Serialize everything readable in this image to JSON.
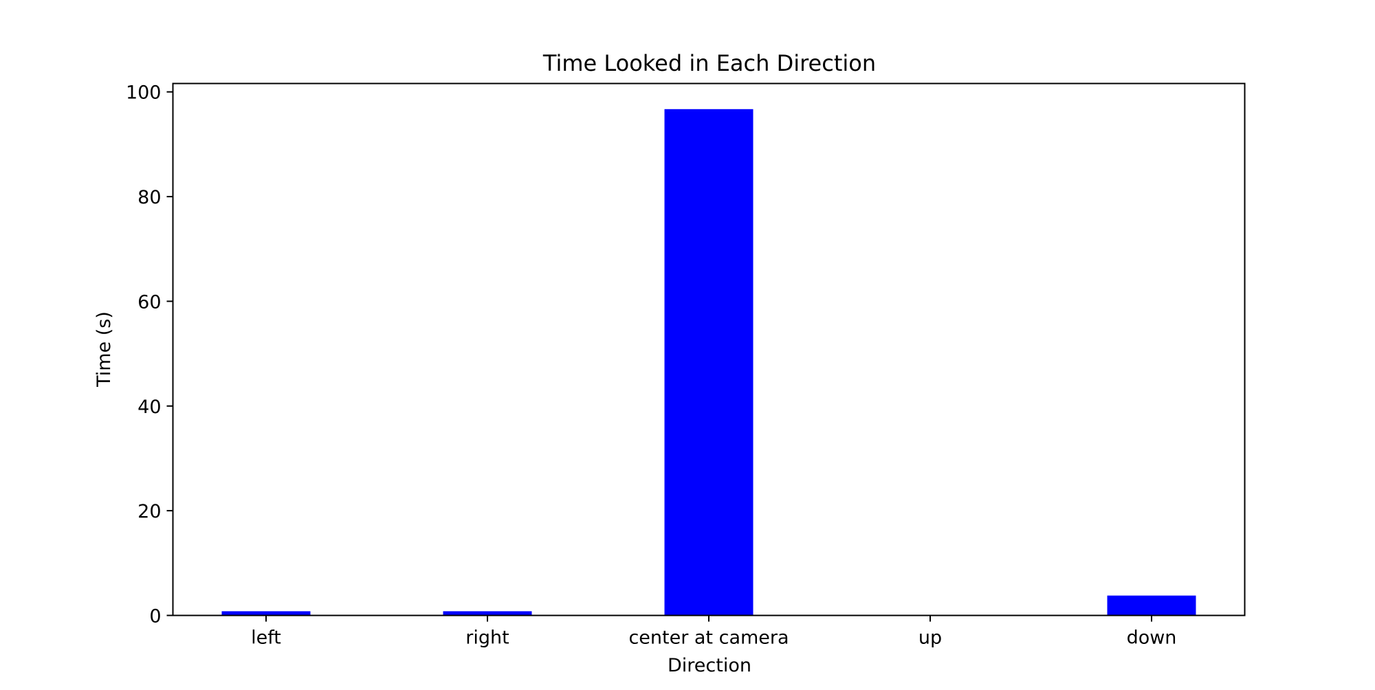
{
  "chart_data": {
    "type": "bar",
    "title": "Time Looked in Each Direction",
    "xlabel": "Direction",
    "ylabel": "Time (s)",
    "categories": [
      "left",
      "right",
      "center at camera",
      "up",
      "down"
    ],
    "values": [
      0.8,
      0.8,
      96.7,
      0.0,
      3.8
    ],
    "ylim": [
      0,
      101.6
    ],
    "yticks": [
      0,
      20,
      40,
      60,
      80,
      100
    ],
    "bar_color": "#0000ff",
    "grid": false,
    "legend": "none"
  }
}
